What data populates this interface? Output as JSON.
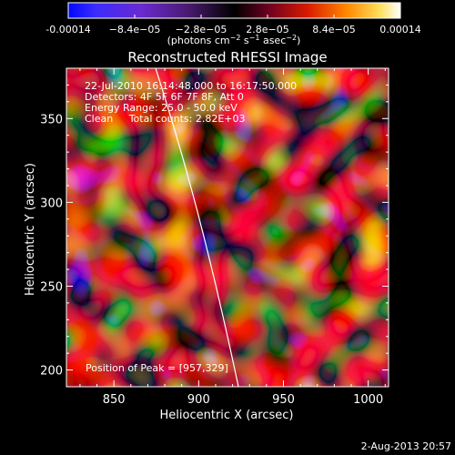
{
  "colorbar": {
    "ticks": [
      "-0.00014",
      "−8.4e−05",
      "−2.8e−05",
      "2.8e−05",
      "8.4e−05",
      "0.00014"
    ],
    "units_pre": "(photons cm",
    "units_sup1": "−2",
    "units_mid": " s",
    "units_sup2": "−1",
    "units_mid2": " asec",
    "units_sup3": "−2",
    "units_post": ")"
  },
  "image": {
    "title": "Reconstructed RHESSI Image",
    "info": [
      "22-Jul-2010 16:14:48.000 to 16:17:50.000",
      "Detectors: 4F 5F 6F 7F 8F, Att 0",
      "Energy Range: 25.0 - 50.0 keV",
      "Clean     Total counts: 2.82E+03"
    ],
    "peak_text": "Position of Peak = [957,329]",
    "xlabel": "Heliocentric X (arcsec)",
    "ylabel": "Heliocentric Y (arcsec)",
    "x_ticks": [
      {
        "label": "850",
        "value": 850
      },
      {
        "label": "900",
        "value": 900
      },
      {
        "label": "950",
        "value": 950
      },
      {
        "label": "1000",
        "value": 1000
      }
    ],
    "y_ticks": [
      {
        "label": "200",
        "value": 200
      },
      {
        "label": "250",
        "value": 250
      },
      {
        "label": "300",
        "value": 300
      },
      {
        "label": "350",
        "value": 350
      }
    ],
    "xlim": [
      822,
      1012
    ],
    "ylim": [
      190,
      380
    ],
    "peak_position": [
      957,
      329
    ]
  },
  "footer": {
    "date": "2-Aug-2013 20:57"
  }
}
